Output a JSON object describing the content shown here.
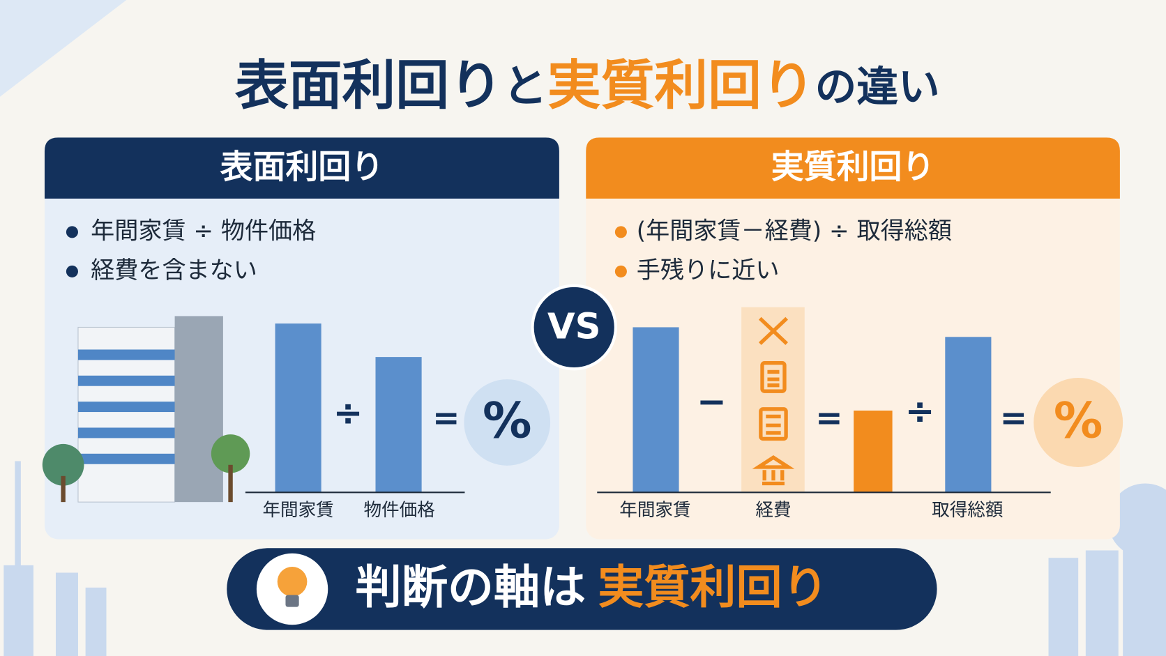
{
  "title": {
    "part1": "表面利回り",
    "part2": "と",
    "part3": "実質利回り",
    "part4": "の違い"
  },
  "left_panel": {
    "header": "表面利回り",
    "bullets": [
      "年間家賃 ÷ 物件価格",
      "経費を含まない"
    ],
    "labels": [
      "年間家賃",
      "物件価格"
    ],
    "operators": [
      "÷",
      "=",
      "%"
    ]
  },
  "vs": "VS",
  "right_panel": {
    "header": "実質利回り",
    "bullets": [
      "(年間家賃－経費) ÷ 取得総額",
      "手残りに近い"
    ],
    "labels": [
      "年間家賃",
      "経費",
      "取得総額"
    ],
    "operators": [
      "−",
      "=",
      "÷",
      "=",
      "%"
    ]
  },
  "footer": {
    "part1": "判断の軸は",
    "part2": "実質利回り"
  }
}
